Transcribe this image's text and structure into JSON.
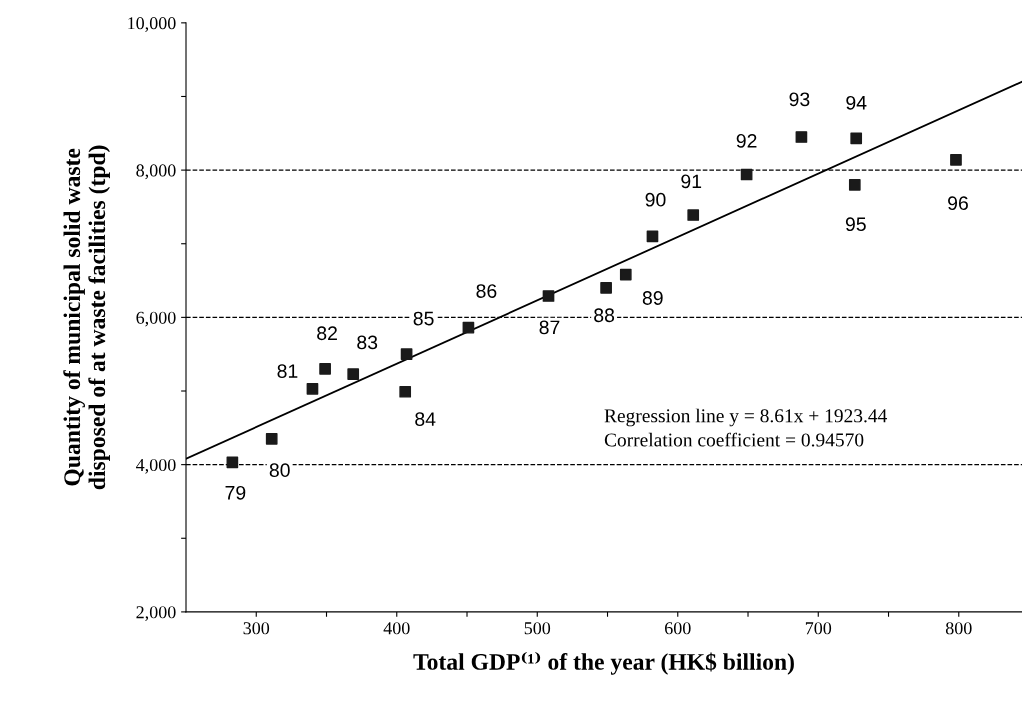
{
  "chart_data": {
    "type": "scatter",
    "xlabel": "Total GDP⁽¹⁾ of the year (HK$ billion)",
    "ylabel": "Quantity of municipal solid waste\ndisposed of at waste facilities (tpd)",
    "xlim": [
      250,
      845
    ],
    "ylim": [
      2000,
      10000
    ],
    "xticks": [
      300,
      {
        "value": 350,
        "label": null
      },
      400,
      {
        "value": 450,
        "label": null
      },
      500,
      {
        "value": 550,
        "label": null
      },
      600,
      {
        "value": 650,
        "label": null
      },
      700,
      {
        "value": 750,
        "label": null
      },
      800
    ],
    "yticks": [
      {
        "value": 2000,
        "label": "2,000"
      },
      {
        "value": 3000,
        "label": null
      },
      {
        "value": 4000,
        "label": "4,000"
      },
      {
        "value": 5000,
        "label": null
      },
      {
        "value": 6000,
        "label": "6,000"
      },
      {
        "value": 7000,
        "label": null
      },
      {
        "value": 8000,
        "label": "8,000"
      },
      {
        "value": 9000,
        "label": null
      },
      {
        "value": 10000,
        "label": "10,000"
      }
    ],
    "grid": false,
    "legend": false,
    "series": [
      {
        "marker": "square",
        "color": "#1a1a1a",
        "x": [
          283,
          311,
          340,
          349,
          369,
          406,
          407,
          451,
          508,
          549,
          563,
          582,
          611,
          649,
          688,
          727,
          726,
          798
        ],
        "values": [
          4030,
          4350,
          5030,
          5300,
          5230,
          4990,
          5500,
          5860,
          6290,
          6400,
          6580,
          7100,
          7390,
          7940,
          8450,
          8430,
          7800,
          8140
        ]
      },
      {
        "type": "line",
        "marker": "none",
        "line_style": "solid",
        "color": "#000000",
        "x": [
          250,
          845
        ],
        "values": [
          4080,
          9200
        ]
      }
    ],
    "ref_lines": [
      {
        "axis": "y",
        "value": 4000,
        "color": "#000000",
        "line_style": "dashed"
      },
      {
        "axis": "y",
        "value": 6000,
        "color": "#000000",
        "line_style": "dashed"
      },
      {
        "axis": "y",
        "value": 8000,
        "color": "#000000",
        "line_style": "dashed"
      }
    ],
    "annotations": [
      {
        "text": "79",
        "x": 283,
        "y": 4030
      },
      {
        "text": "80",
        "x": 311,
        "y": 4350
      },
      {
        "text": "81",
        "x": 340,
        "y": 5030
      },
      {
        "text": "82",
        "x": 349,
        "y": 5300
      },
      {
        "text": "83",
        "x": 369,
        "y": 5230
      },
      {
        "text": "84",
        "x": 406,
        "y": 4990
      },
      {
        "text": "85",
        "x": 407,
        "y": 5500
      },
      {
        "text": "86",
        "x": 451,
        "y": 5860
      },
      {
        "text": "87",
        "x": 508,
        "y": 6290
      },
      {
        "text": "88",
        "x": 549,
        "y": 6400
      },
      {
        "text": "89",
        "x": 563,
        "y": 6580
      },
      {
        "text": "90",
        "x": 582,
        "y": 7100
      },
      {
        "text": "91",
        "x": 611,
        "y": 7390
      },
      {
        "text": "92",
        "x": 649,
        "y": 7940
      },
      {
        "text": "93",
        "x": 688,
        "y": 8450
      },
      {
        "text": "94",
        "x": 727,
        "y": 8430
      },
      {
        "text": "95",
        "x": 726,
        "y": 7800
      },
      {
        "text": "96",
        "x": 798,
        "y": 8140
      },
      "Regression line y = 8.61x + 1923.44",
      "Correlation coefficient = 0.94570"
    ]
  }
}
